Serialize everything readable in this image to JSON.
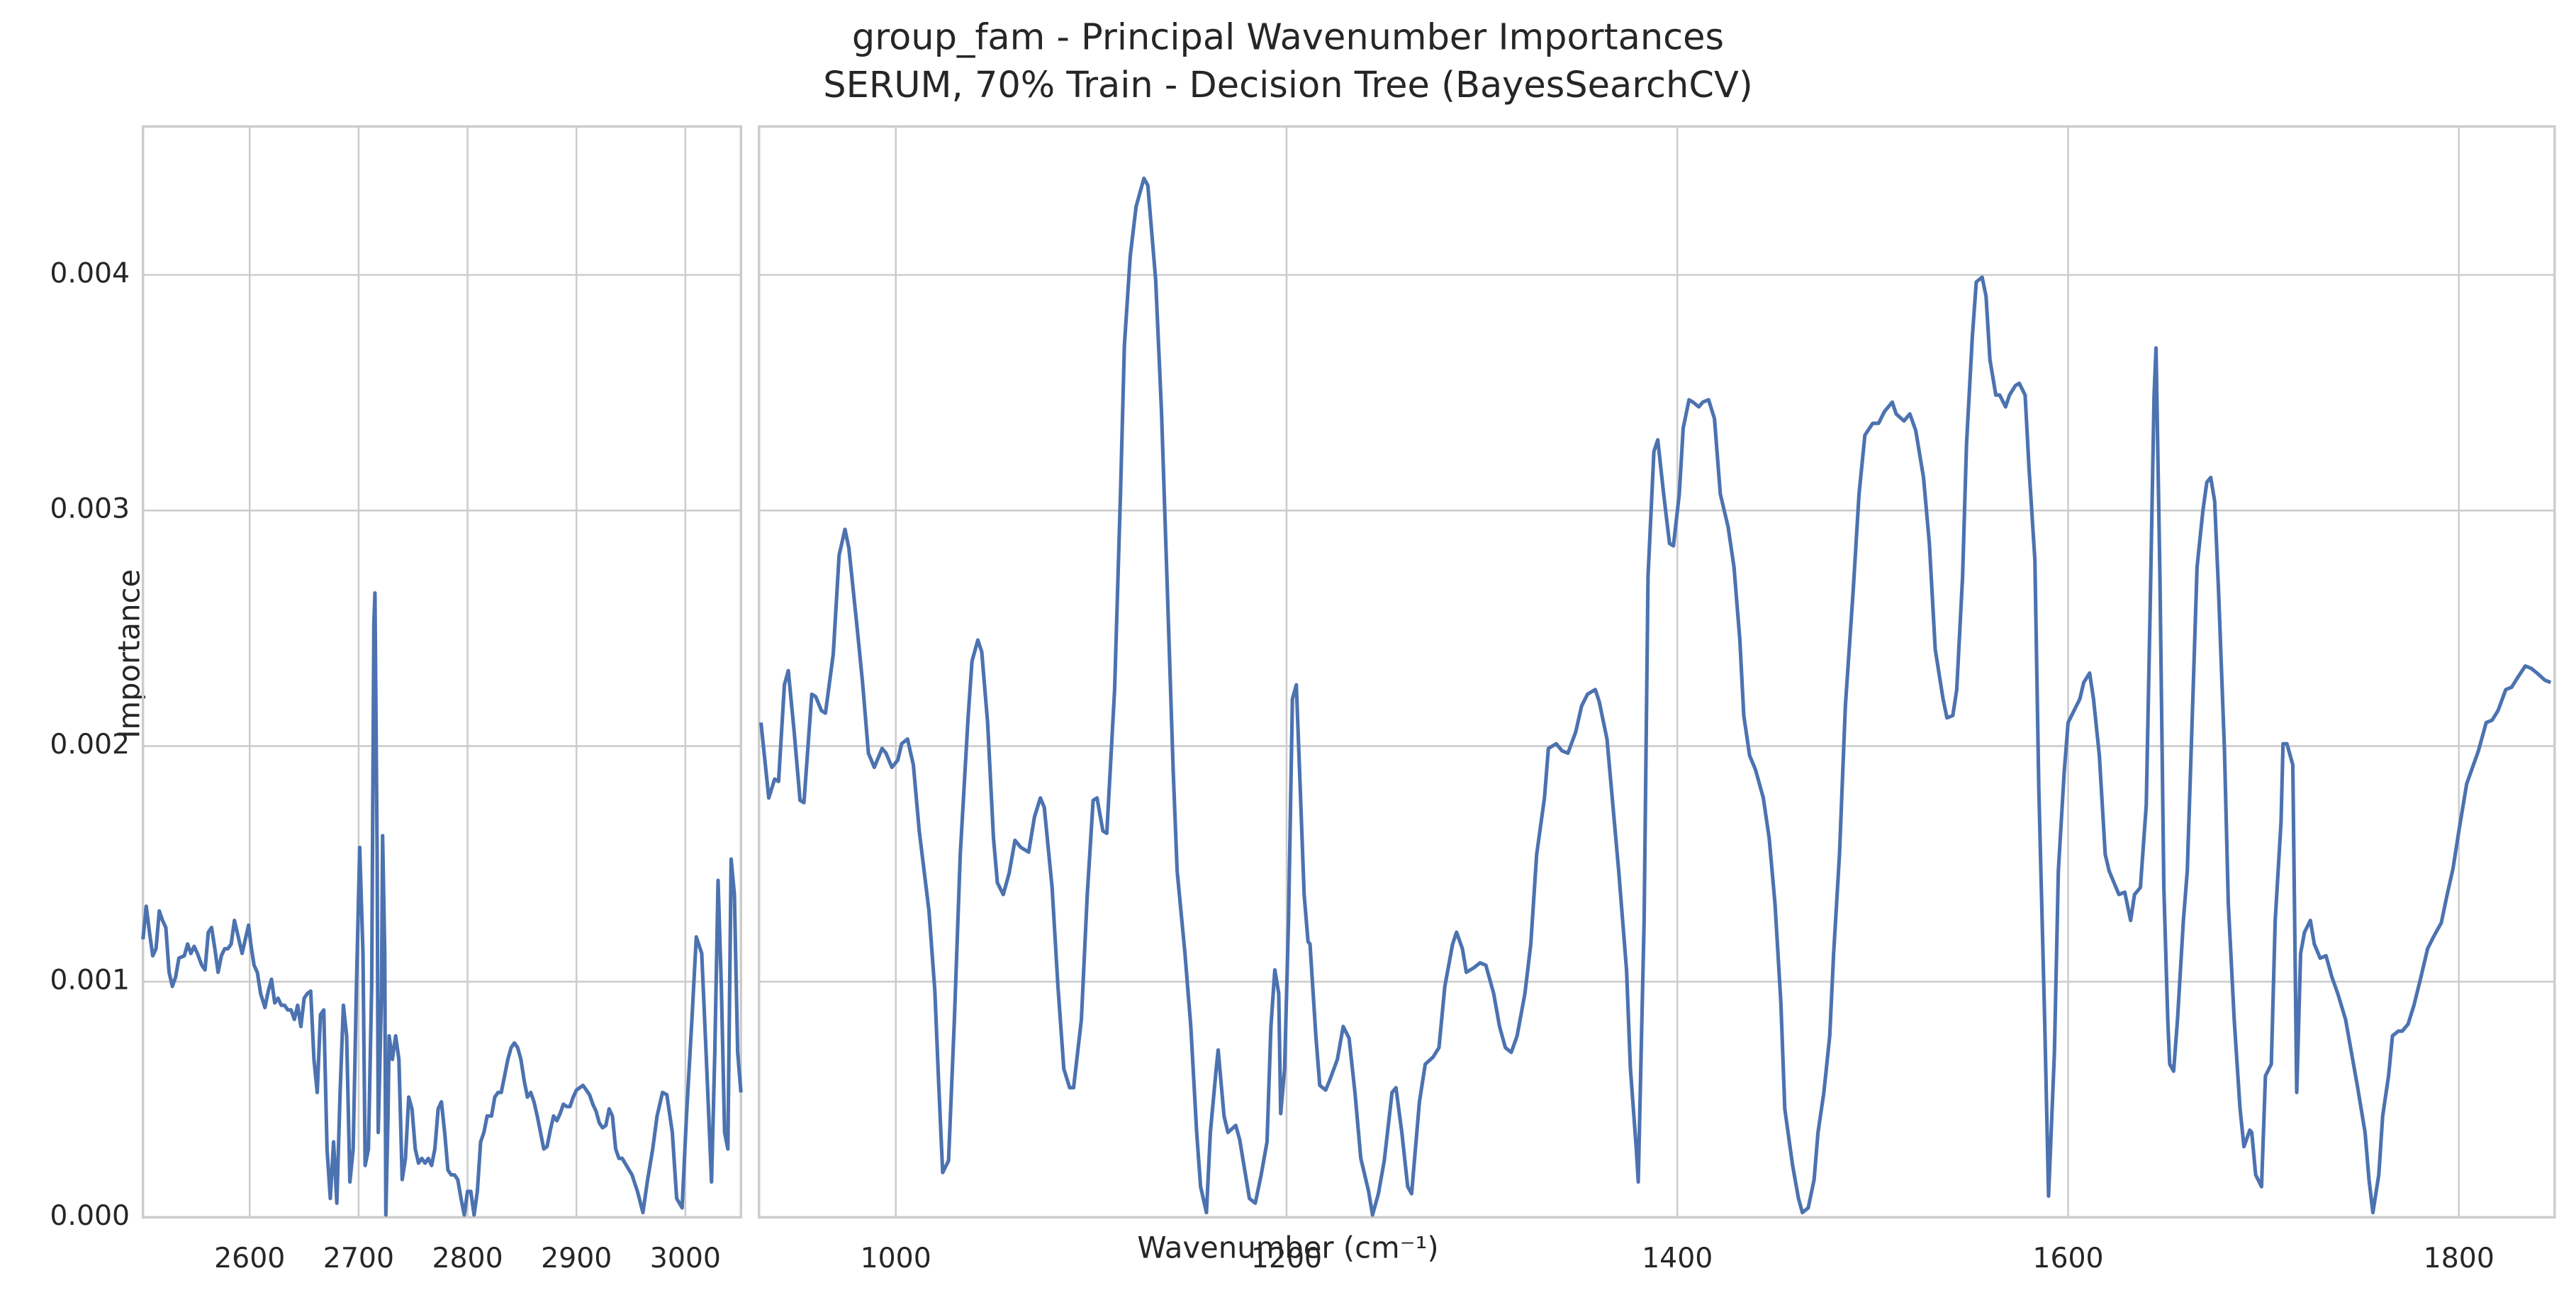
{
  "chart_data": [
    {
      "type": "line",
      "title": "group_fam - Principal Wavenumber Importances",
      "subtitle": "SERUM, 70% Train - Decision Tree (BayesSearchCV)",
      "xlabel": "Wavenumber (cm⁻¹)",
      "ylabel": "Importance",
      "x": [
        2502,
        2505,
        2508,
        2511,
        2514,
        2517,
        2520,
        2523,
        2526,
        2529,
        2532,
        2535,
        2540,
        2543,
        2546,
        2549,
        2552,
        2556,
        2559,
        2562,
        2565,
        2568,
        2571,
        2574,
        2577,
        2580,
        2583,
        2586,
        2590,
        2593,
        2596,
        2599,
        2601,
        2604,
        2607,
        2610,
        2614,
        2617,
        2620,
        2623,
        2626,
        2629,
        2632,
        2635,
        2638,
        2641,
        2644,
        2647,
        2650,
        2653,
        2656,
        2659,
        2662,
        2665,
        2668,
        2671,
        2674,
        2677,
        2680,
        2683,
        2686,
        2689,
        2692,
        2695,
        2698,
        2701,
        2704,
        2706,
        2709,
        2712,
        2714,
        2715,
        2717,
        2718,
        2721,
        2722,
        2724,
        2725,
        2727,
        2728,
        2731,
        2734,
        2737,
        2740,
        2743,
        2746,
        2749,
        2752,
        2755,
        2758,
        2761,
        2764,
        2767,
        2770,
        2773,
        2776,
        2779,
        2782,
        2785,
        2788,
        2791,
        2794,
        2797,
        2800,
        2803,
        2806,
        2809,
        2812,
        2815,
        2818,
        2822,
        2825,
        2828,
        2831,
        2834,
        2837,
        2840,
        2843,
        2846,
        2849,
        2852,
        2855,
        2858,
        2861,
        2864,
        2867,
        2870,
        2873,
        2876,
        2879,
        2882,
        2885,
        2888,
        2891,
        2894,
        2897,
        2900,
        2903,
        2906,
        2909,
        2912,
        2915,
        2918,
        2921,
        2924,
        2927,
        2930,
        2933,
        2936,
        2939,
        2942,
        2951,
        2956,
        2961,
        2965,
        2970,
        2974,
        2979,
        2983,
        2988,
        2992,
        2997,
        3001,
        3006,
        3010,
        3015,
        3019,
        3024,
        3027,
        3030,
        3033,
        3036,
        3039,
        3042,
        3045,
        3048,
        3051
      ],
      "series": [
        {
          "color": "#4c72b0",
          "values": [
            0.00118,
            0.00132,
            0.00121,
            0.00111,
            0.00114,
            0.0013,
            0.00126,
            0.00123,
            0.00104,
            0.00098,
            0.00102,
            0.0011,
            0.00111,
            0.00116,
            0.00112,
            0.00115,
            0.00112,
            0.00107,
            0.00105,
            0.00121,
            0.00123,
            0.00114,
            0.00104,
            0.00111,
            0.00114,
            0.00114,
            0.00116,
            0.00126,
            0.00118,
            0.00112,
            0.00118,
            0.00124,
            0.00116,
            0.00107,
            0.00104,
            0.00095,
            0.00089,
            0.00096,
            0.00101,
            0.00091,
            0.00093,
            0.0009,
            0.0009,
            0.00088,
            0.00088,
            0.00084,
            0.0009,
            0.00081,
            0.00093,
            0.00095,
            0.00096,
            0.00067,
            0.00053,
            0.00086,
            0.00088,
            0.00029,
            8e-05,
            0.00032,
            6e-05,
            0.00053,
            0.0009,
            0.00077,
            0.00015,
            0.00029,
            0.00098,
            0.00157,
            0.00112,
            0.00022,
            0.00029,
            0.00098,
            0.00252,
            0.00265,
            0.00154,
            0.00036,
            0.00095,
            0.00162,
            0.00112,
            1e-05,
            0.00043,
            0.00077,
            0.00067,
            0.00077,
            0.00067,
            0.00016,
            0.00025,
            0.00051,
            0.00046,
            0.00029,
            0.00023,
            0.00025,
            0.00023,
            0.00025,
            0.00022,
            0.00029,
            0.00046,
            0.00049,
            0.00036,
            0.0002,
            0.00018,
            0.00018,
            0.00016,
            8e-05,
            1e-05,
            0.00011,
            0.00011,
            1e-05,
            0.00011,
            0.00032,
            0.00036,
            0.00043,
            0.00043,
            0.00051,
            0.00053,
            0.00053,
            0.0006,
            0.00067,
            0.00072,
            0.00074,
            0.00072,
            0.00067,
            0.00058,
            0.00051,
            0.00053,
            0.00049,
            0.00043,
            0.00036,
            0.00029,
            0.0003,
            0.00037,
            0.00043,
            0.00041,
            0.00044,
            0.00048,
            0.00047,
            0.00047,
            0.00051,
            0.00054,
            0.00055,
            0.00056,
            0.00054,
            0.00052,
            0.00048,
            0.00045,
            0.0004,
            0.00038,
            0.00039,
            0.00046,
            0.00043,
            0.00029,
            0.00025,
            0.00025,
            0.00018,
            0.00011,
            2e-05,
            0.00015,
            0.00029,
            0.00043,
            0.00053,
            0.00052,
            0.00036,
            8e-05,
            4e-05,
            0.00043,
            0.00084,
            0.00119,
            0.00112,
            0.0007,
            0.00015,
            0.0007,
            0.00143,
            0.00098,
            0.00036,
            0.00029,
            0.00152,
            0.00137,
            0.0007,
            0.00053
          ]
        }
      ],
      "xlim": [
        2502,
        3051
      ],
      "ylim": [
        0,
        0.00463
      ],
      "xticks": [
        2600,
        2700,
        2800,
        2900,
        3000
      ],
      "yticks": [
        {
          "value": 0,
          "label": "0.000"
        },
        0.001,
        0.002,
        0.003,
        0.004
      ],
      "grid": true
    },
    {
      "type": "line",
      "x": [
        931,
        935,
        938,
        940,
        943,
        945,
        948,
        951,
        953,
        957,
        959,
        962,
        964,
        968,
        971,
        974,
        976,
        980,
        983,
        986,
        989,
        993,
        995,
        998,
        1001,
        1003,
        1006,
        1009,
        1012,
        1017,
        1020,
        1022,
        1024,
        1027,
        1030,
        1033,
        1037,
        1039,
        1042,
        1044,
        1047,
        1050,
        1052,
        1055,
        1058,
        1061,
        1064,
        1068,
        1071,
        1074,
        1076,
        1080,
        1083,
        1086,
        1089,
        1091,
        1095,
        1098,
        1101,
        1103,
        1106,
        1108,
        1112,
        1115,
        1117,
        1120,
        1123,
        1127,
        1129,
        1133,
        1136,
        1139,
        1142,
        1144,
        1148,
        1151,
        1154,
        1156,
        1159,
        1161,
        1164,
        1165,
        1168,
        1170,
        1174,
        1176,
        1179,
        1181,
        1184,
        1187,
        1190,
        1192,
        1194,
        1196,
        1197,
        1199,
        1201,
        1203,
        1205,
        1207,
        1209,
        1211,
        1212,
        1215,
        1217,
        1220,
        1222,
        1226,
        1229,
        1232,
        1235,
        1238,
        1242,
        1244,
        1247,
        1250,
        1254,
        1256,
        1259,
        1262,
        1264,
        1268,
        1271,
        1275,
        1278,
        1281,
        1285,
        1287,
        1290,
        1292,
        1296,
        1299,
        1302,
        1306,
        1309,
        1312,
        1315,
        1318,
        1322,
        1325,
        1328,
        1332,
        1334,
        1338,
        1341,
        1344,
        1348,
        1351,
        1354,
        1358,
        1360,
        1364,
        1367,
        1370,
        1374,
        1376,
        1379,
        1380,
        1383,
        1385,
        1388,
        1390,
        1393,
        1396,
        1398,
        1401,
        1403,
        1406,
        1408,
        1411,
        1413,
        1416,
        1419,
        1422,
        1426,
        1429,
        1432,
        1434,
        1437,
        1440,
        1444,
        1447,
        1450,
        1453,
        1455,
        1459,
        1462,
        1464,
        1467,
        1470,
        1472,
        1475,
        1478,
        1480,
        1483,
        1486,
        1490,
        1493,
        1496,
        1500,
        1503,
        1506,
        1510,
        1512,
        1516,
        1519,
        1522,
        1526,
        1529,
        1532,
        1536,
        1538,
        1541,
        1543,
        1546,
        1548,
        1551,
        1553,
        1556,
        1558,
        1560,
        1563,
        1565,
        1568,
        1570,
        1573,
        1575,
        1578,
        1580,
        1583,
        1585,
        1588,
        1590,
        1593,
        1595,
        1598,
        1600,
        1603,
        1606,
        1608,
        1611,
        1613,
        1616,
        1619,
        1621,
        1624,
        1626,
        1629,
        1632,
        1634,
        1637,
        1640,
        1642,
        1644,
        1645,
        1647,
        1649,
        1651,
        1652,
        1654,
        1656,
        1659,
        1661,
        1664,
        1666,
        1669,
        1671,
        1673,
        1675,
        1677,
        1680,
        1682,
        1685,
        1688,
        1690,
        1693,
        1694,
        1696,
        1699,
        1701,
        1704,
        1706,
        1709,
        1710,
        1712,
        1715,
        1717,
        1719,
        1721,
        1724,
        1726,
        1729,
        1732,
        1735,
        1738,
        1742,
        1745,
        1748,
        1752,
        1754,
        1756,
        1759,
        1761,
        1764,
        1766,
        1769,
        1771,
        1774,
        1777,
        1780,
        1784,
        1787,
        1791,
        1794,
        1797,
        1800,
        1804,
        1807,
        1810,
        1814,
        1817,
        1820,
        1824,
        1827,
        1830,
        1834,
        1837,
        1840,
        1844,
        1847
      ],
      "series": [
        {
          "color": "#4c72b0",
          "values": [
            0.0021,
            0.00178,
            0.00186,
            0.00185,
            0.00226,
            0.00232,
            0.00206,
            0.00177,
            0.00176,
            0.00222,
            0.00221,
            0.00215,
            0.00214,
            0.00239,
            0.00281,
            0.00292,
            0.00284,
            0.00252,
            0.00227,
            0.00197,
            0.00191,
            0.00199,
            0.00197,
            0.00191,
            0.00194,
            0.00201,
            0.00203,
            0.00192,
            0.00164,
            0.0013,
            0.00096,
            0.00056,
            0.00019,
            0.00024,
            0.00084,
            0.00154,
            0.00212,
            0.00236,
            0.00245,
            0.0024,
            0.0021,
            0.00161,
            0.00142,
            0.00137,
            0.00146,
            0.0016,
            0.00157,
            0.00155,
            0.0017,
            0.00178,
            0.00174,
            0.0014,
            0.00098,
            0.00063,
            0.00055,
            0.00055,
            0.00084,
            0.00137,
            0.00177,
            0.00178,
            0.00164,
            0.00163,
            0.00224,
            0.00307,
            0.0037,
            0.00408,
            0.00429,
            0.00441,
            0.00438,
            0.00398,
            0.00342,
            0.00266,
            0.00189,
            0.00147,
            0.00112,
            0.00081,
            0.00036,
            0.00013,
            2e-05,
            0.00036,
            0.00063,
            0.00071,
            0.00043,
            0.00036,
            0.00039,
            0.00033,
            0.00018,
            8e-05,
            6e-05,
            0.00018,
            0.00032,
            0.00081,
            0.00105,
            0.00095,
            0.00044,
            0.00063,
            0.00126,
            0.0022,
            0.00226,
            0.00182,
            0.00137,
            0.00117,
            0.00116,
            0.00077,
            0.00056,
            0.00054,
            0.00058,
            0.00067,
            0.00081,
            0.00076,
            0.00053,
            0.00025,
            0.00011,
            1e-05,
            0.0001,
            0.00024,
            0.00053,
            0.00055,
            0.00036,
            0.00013,
            0.0001,
            0.00049,
            0.00065,
            0.00068,
            0.00072,
            0.00098,
            0.00116,
            0.00121,
            0.00114,
            0.00104,
            0.00106,
            0.00108,
            0.00107,
            0.00095,
            0.00081,
            0.00072,
            0.0007,
            0.00077,
            0.00095,
            0.00116,
            0.00154,
            0.00178,
            0.00199,
            0.00201,
            0.00198,
            0.00197,
            0.00206,
            0.00217,
            0.00222,
            0.00224,
            0.00219,
            0.00203,
            0.00175,
            0.00147,
            0.00105,
            0.00063,
            0.00029,
            0.00015,
            0.00126,
            0.00272,
            0.00325,
            0.0033,
            0.00307,
            0.00286,
            0.00285,
            0.00307,
            0.00335,
            0.00347,
            0.00346,
            0.00344,
            0.00346,
            0.00347,
            0.00339,
            0.00307,
            0.00293,
            0.00276,
            0.00245,
            0.00213,
            0.00196,
            0.0019,
            0.00178,
            0.00161,
            0.00133,
            0.00091,
            0.00046,
            0.00022,
            8e-05,
            2e-05,
            4e-05,
            0.00016,
            0.00036,
            0.00053,
            0.00077,
            0.00112,
            0.00154,
            0.00217,
            0.00266,
            0.00307,
            0.00332,
            0.00337,
            0.00337,
            0.00342,
            0.00346,
            0.00341,
            0.00338,
            0.00341,
            0.00334,
            0.00314,
            0.00286,
            0.00241,
            0.0022,
            0.00212,
            0.00213,
            0.00224,
            0.00272,
            0.00328,
            0.00374,
            0.00397,
            0.00399,
            0.00391,
            0.00364,
            0.00349,
            0.00349,
            0.00344,
            0.00349,
            0.00353,
            0.00354,
            0.00349,
            0.00318,
            0.00279,
            0.00182,
            0.00084,
            9e-05,
            0.0007,
            0.00147,
            0.00189,
            0.0021,
            0.00215,
            0.0022,
            0.00227,
            0.00231,
            0.0022,
            0.00196,
            0.00154,
            0.00147,
            0.00141,
            0.00137,
            0.00138,
            0.00126,
            0.00137,
            0.0014,
            0.00175,
            0.00259,
            0.00349,
            0.00369,
            0.00272,
            0.0014,
            0.00084,
            0.00065,
            0.00062,
            0.00084,
            0.00126,
            0.00147,
            0.00224,
            0.00276,
            0.003,
            0.00312,
            0.00314,
            0.00304,
            0.00266,
            0.00199,
            0.00133,
            0.00084,
            0.00046,
            0.0003,
            0.00037,
            0.00036,
            0.00018,
            0.00013,
            0.0006,
            0.00065,
            0.00126,
            0.00168,
            0.00201,
            0.00201,
            0.00192,
            0.00053,
            0.00112,
            0.00121,
            0.00126,
            0.00116,
            0.0011,
            0.00111,
            0.00102,
            0.00095,
            0.00084,
            0.0007,
            0.00056,
            0.00036,
            0.00016,
            2e-05,
            0.00018,
            0.00043,
            0.0006,
            0.00077,
            0.00079,
            0.00079,
            0.00082,
            0.0009,
            0.001,
            0.00114,
            0.00119,
            0.00125,
            0.00137,
            0.00148,
            0.00164,
            0.00184,
            0.00191,
            0.00198,
            0.0021,
            0.00211,
            0.00215,
            0.00224,
            0.00225,
            0.00229,
            0.00234,
            0.00233,
            0.00231,
            0.00228,
            0.00227
          ]
        }
      ],
      "xlim": [
        930,
        1849
      ],
      "ylim": [
        0,
        0.00463
      ],
      "xticks": [
        1000,
        1200,
        1400,
        1600,
        1800
      ],
      "yticks": [
        0,
        0.001,
        0.002,
        0.003,
        0.004
      ],
      "grid": true
    }
  ]
}
